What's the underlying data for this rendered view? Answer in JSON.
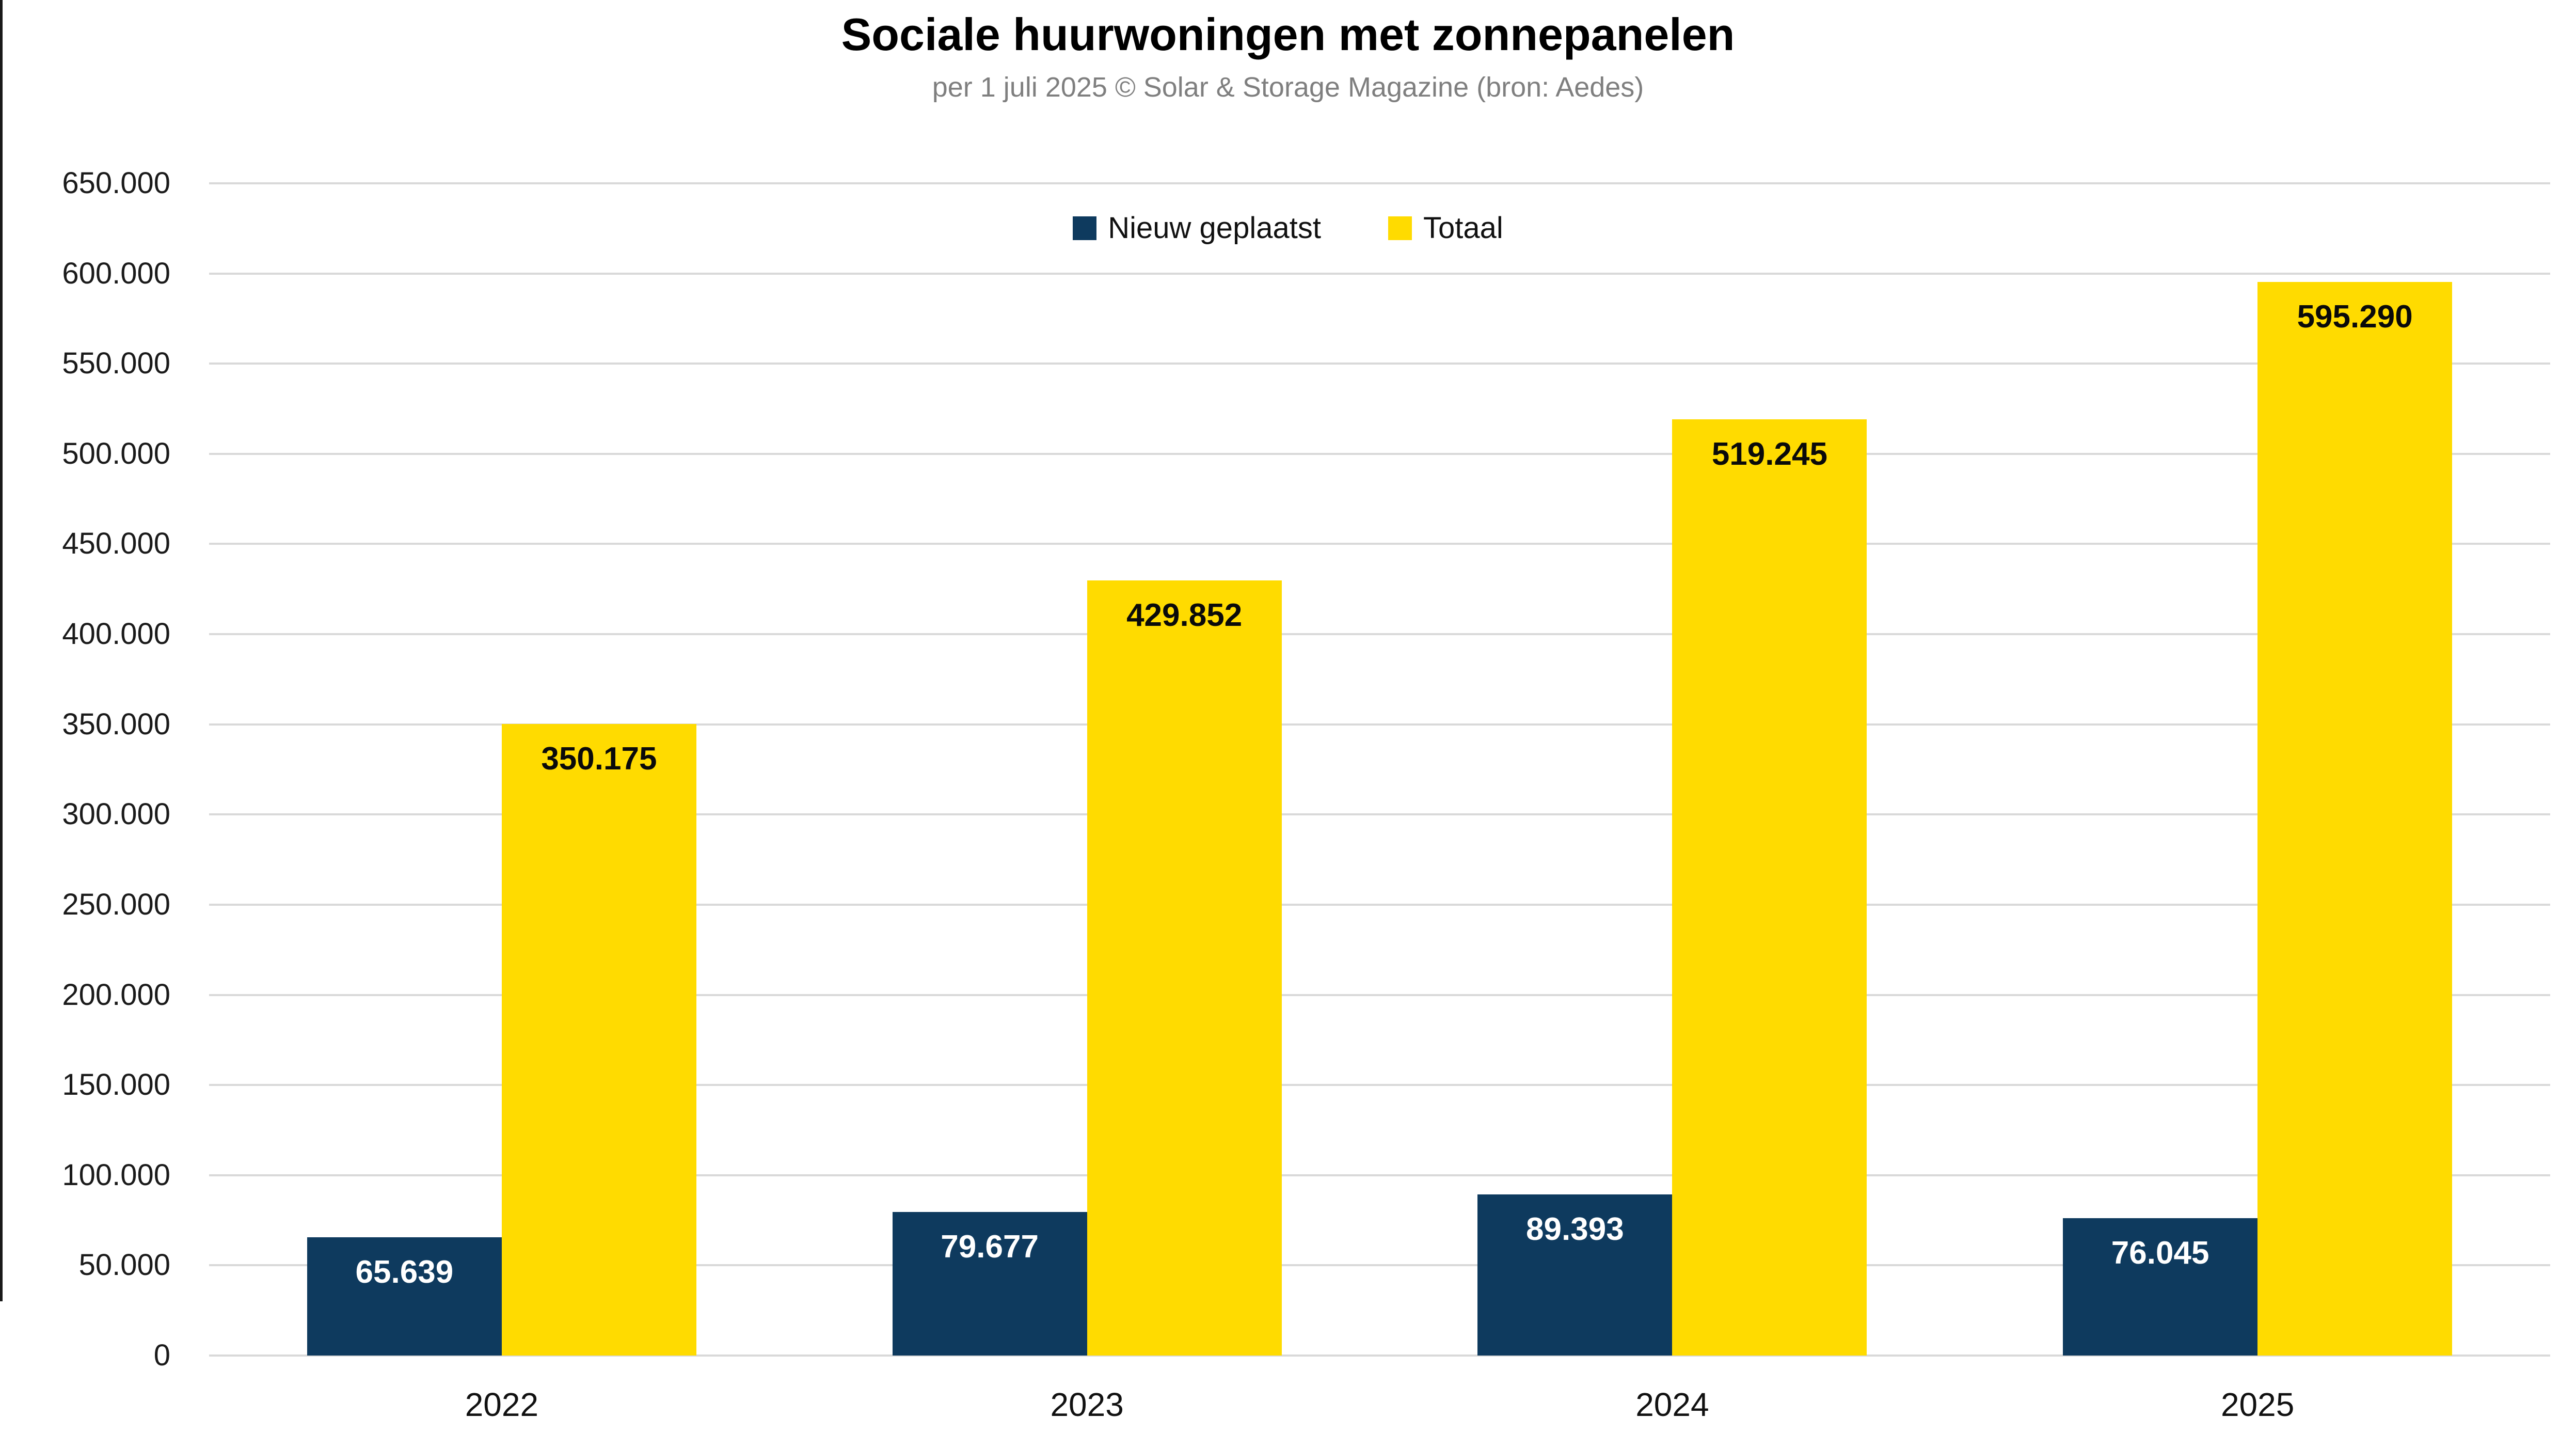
{
  "title": "Sociale huurwoningen met zonnepanelen",
  "subtitle": "per 1 juli 2025 © Solar & Storage Magazine (bron: Aedes)",
  "legend": {
    "items": [
      {
        "label": "Nieuw geplaatst",
        "color": "#0e3a5e"
      },
      {
        "label": "Totaal",
        "color": "#ffdb00"
      }
    ]
  },
  "chart_data": {
    "type": "bar",
    "title": "Sociale huurwoningen met zonnepanelen",
    "subtitle": "per 1 juli 2025 © Solar & Storage Magazine (bron: Aedes)",
    "categories": [
      "2022",
      "2023",
      "2024",
      "2025"
    ],
    "series": [
      {
        "name": "Nieuw geplaatst",
        "color": "#0e3a5e",
        "label_color": "#ffffff",
        "values": [
          65639,
          79677,
          89393,
          76045
        ],
        "labels": [
          "65.639",
          "79.677",
          "89.393",
          "76.045"
        ]
      },
      {
        "name": "Totaal",
        "color": "#ffdb00",
        "label_color": "#0a0a0a",
        "values": [
          350175,
          429852,
          519245,
          595290
        ],
        "labels": [
          "350.175",
          "429.852",
          "519.245",
          "595.290"
        ]
      }
    ],
    "xlabel": "",
    "ylabel": "",
    "ylim": [
      0,
      650000
    ],
    "ytick_step": 50000,
    "ytick_labels": [
      "0",
      "50.000",
      "100.000",
      "150.000",
      "200.000",
      "250.000",
      "300.000",
      "350.000",
      "400.000",
      "450.000",
      "500.000",
      "550.000",
      "600.000",
      "650.000"
    ],
    "grid": "horizontal",
    "legend_position": "top-center"
  },
  "colors": {
    "background": "#ffffff",
    "grid": "#d9d9d9",
    "title": "#000000",
    "subtitle": "#7f7f7f",
    "left_border": "#1a1a1a"
  }
}
